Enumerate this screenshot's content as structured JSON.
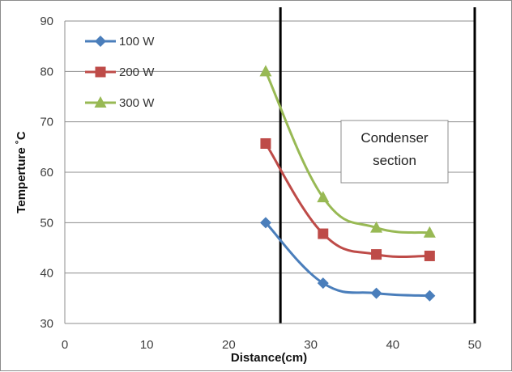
{
  "chart_data": {
    "type": "line",
    "title": "",
    "xlabel": "Distance(cm)",
    "ylabel": "Temperture ˚C",
    "xlim": [
      0,
      50
    ],
    "ylim": [
      30,
      90
    ],
    "xticks": [
      0,
      10,
      20,
      30,
      40,
      50
    ],
    "yticks": [
      30,
      40,
      50,
      60,
      70,
      80,
      90
    ],
    "grid": "horizontal",
    "legend_position": "top-left",
    "series": [
      {
        "name": "100 W",
        "color": "#4a7ebb",
        "marker": "diamond",
        "x": [
          24.5,
          31.5,
          38,
          44.5
        ],
        "y": [
          50,
          38,
          36,
          35.5
        ]
      },
      {
        "name": "200 W",
        "color": "#be4b48",
        "marker": "square",
        "x": [
          24.5,
          31.5,
          38,
          44.5
        ],
        "y": [
          65.7,
          47.8,
          43.7,
          43.4
        ]
      },
      {
        "name": "300 W",
        "color": "#98b954",
        "marker": "triangle",
        "x": [
          24.5,
          31.5,
          38,
          44.5
        ],
        "y": [
          80,
          55,
          49,
          48
        ]
      }
    ],
    "vertical_lines": [
      26.3,
      50
    ],
    "annotations": [
      {
        "text_lines": [
          "Condenser",
          "section"
        ]
      }
    ]
  }
}
